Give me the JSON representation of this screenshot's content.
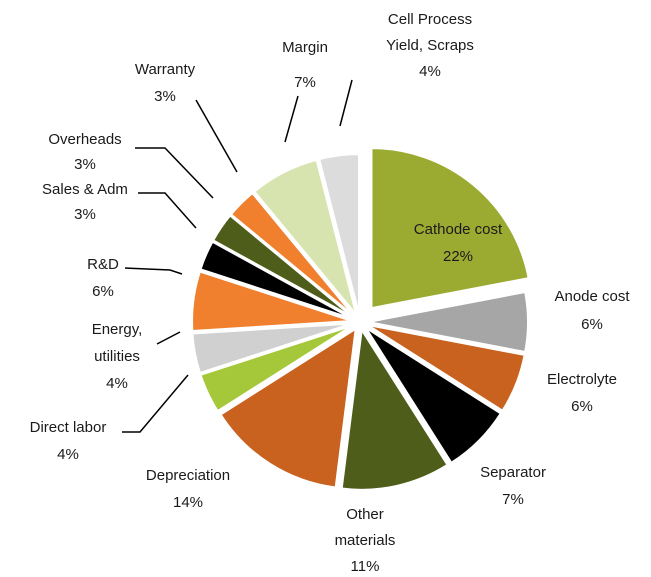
{
  "chart_data": {
    "type": "pie",
    "categories": [
      "Cathode cost",
      "Anode cost",
      "Electrolyte",
      "Separator",
      "Other\nmaterials",
      "Depreciation",
      "Direct labor",
      "Energy,\nutilities",
      "R&D",
      "Sales & Adm",
      "Overheads",
      "Warranty",
      "Margin",
      "Cell Process\nYield, Scraps"
    ],
    "values": [
      22,
      6,
      6,
      7,
      11,
      14,
      4,
      4,
      6,
      3,
      3,
      3,
      7,
      4
    ],
    "value_labels": [
      "22%",
      "6%",
      "6%",
      "7%",
      "11%",
      "14%",
      "4%",
      "4%",
      "6%",
      "3%",
      "3%",
      "3%",
      "7%",
      "4%"
    ],
    "colors": [
      "#9bab32",
      "#a6a6a6",
      "#c8621e",
      "#000000",
      "#4e5e1a",
      "#c8621e",
      "#a4c83a",
      "#d0d0d0",
      "#f07f2e",
      "#000000",
      "#4e5e1a",
      "#f07f2e",
      "#d8e4b0",
      "#dcdcdc"
    ]
  }
}
